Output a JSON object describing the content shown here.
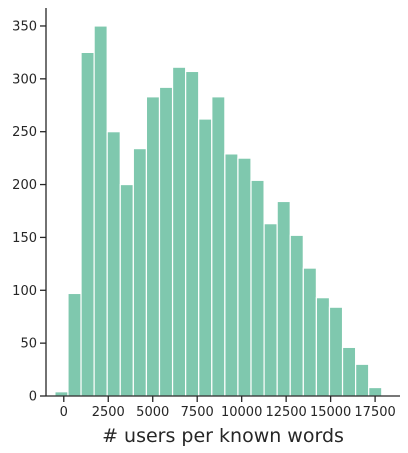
{
  "chart_data": {
    "type": "bar",
    "title": "",
    "xlabel": "# users per known words",
    "ylabel": "",
    "bin_start": -500,
    "bin_width": 735,
    "values": [
      4,
      97,
      325,
      350,
      250,
      200,
      234,
      283,
      292,
      311,
      307,
      262,
      283,
      229,
      225,
      204,
      163,
      184,
      152,
      121,
      93,
      84,
      46,
      30,
      8
    ],
    "xlim": [
      -1000,
      18900
    ],
    "ylim": [
      0,
      367
    ],
    "x_ticks": [
      0,
      2500,
      5000,
      7500,
      10000,
      12500,
      15000,
      17500
    ],
    "x_tick_labels": [
      "0",
      "2500",
      "5000",
      "7500",
      "10000",
      "12500",
      "15000",
      "17500"
    ],
    "y_ticks": [
      0,
      50,
      100,
      150,
      200,
      250,
      300,
      350
    ],
    "y_tick_labels": [
      "0",
      "50",
      "100",
      "150",
      "200",
      "250",
      "300",
      "350"
    ],
    "bar_color": "#7fc8ae",
    "grid": false,
    "legend": "none"
  }
}
